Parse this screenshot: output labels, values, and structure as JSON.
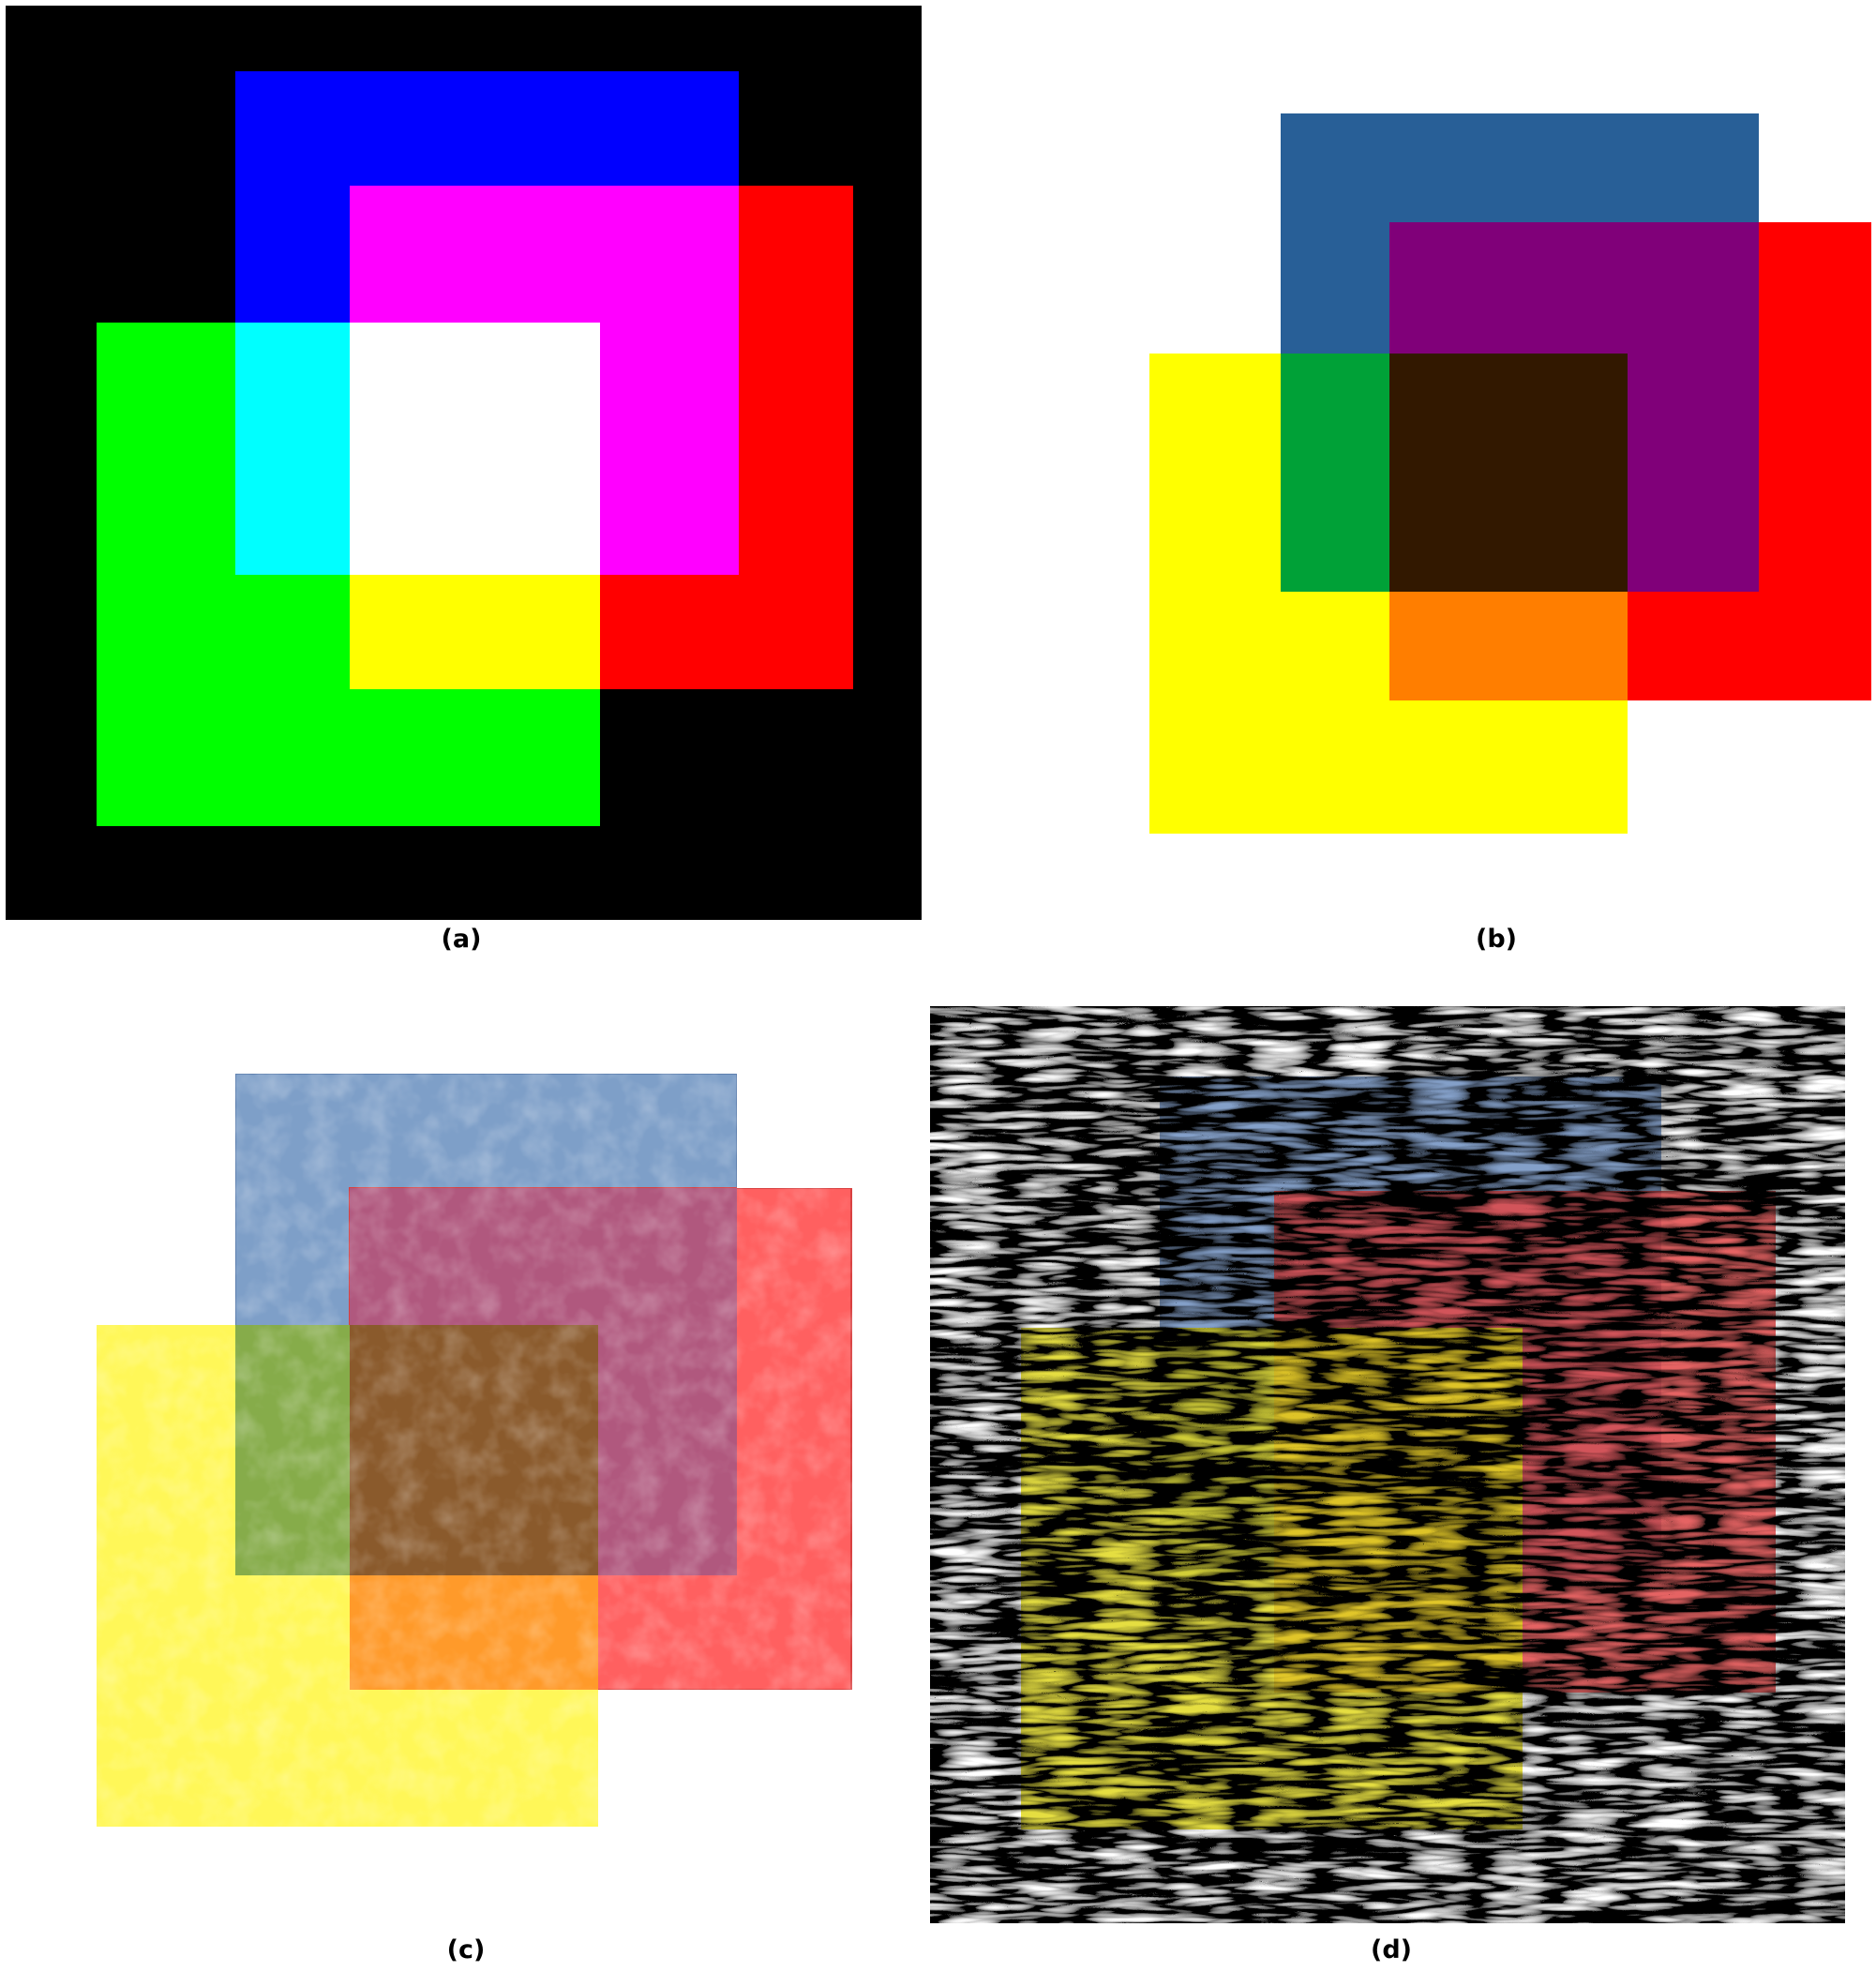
{
  "captions": {
    "a": "(a)",
    "b": "(b)",
    "c": "(c)",
    "d": "(d)"
  },
  "panel_a": {
    "background": "#000000",
    "colors": {
      "blue": "#0000ff",
      "red": "#ff0000",
      "green": "#00ff00",
      "magenta": "#ff00ff",
      "cyan": "#00ffff",
      "yellow": "#ffff00",
      "white": "#ffffff"
    }
  },
  "panel_b": {
    "background": "#ffffff",
    "colors": {
      "blue": "#285f97",
      "red": "#ff0000",
      "yellow": "#ffff00",
      "purple": "#800079",
      "green": "#00a137",
      "orange": "#ff7e00",
      "dark_brown": "#321800"
    }
  },
  "panel_c": {
    "background": "#ffffff",
    "colors": {
      "blue": "#7e9fc8",
      "red": "#ff6060",
      "yellow": "#fff758",
      "purple": "#b0587e",
      "green": "#86ac4a",
      "orange": "#ff9a2a",
      "brown": "#8a5a2c"
    }
  },
  "panel_d": {
    "background": "#8a8a8a",
    "colors": {
      "blue": "#4a6a96",
      "red": "#c03838",
      "yellow": "#c4bc22",
      "purple": "#6a2a50",
      "green": "#4e7a3a",
      "orange": "#c8601c",
      "brown": "#4a2e16"
    }
  }
}
